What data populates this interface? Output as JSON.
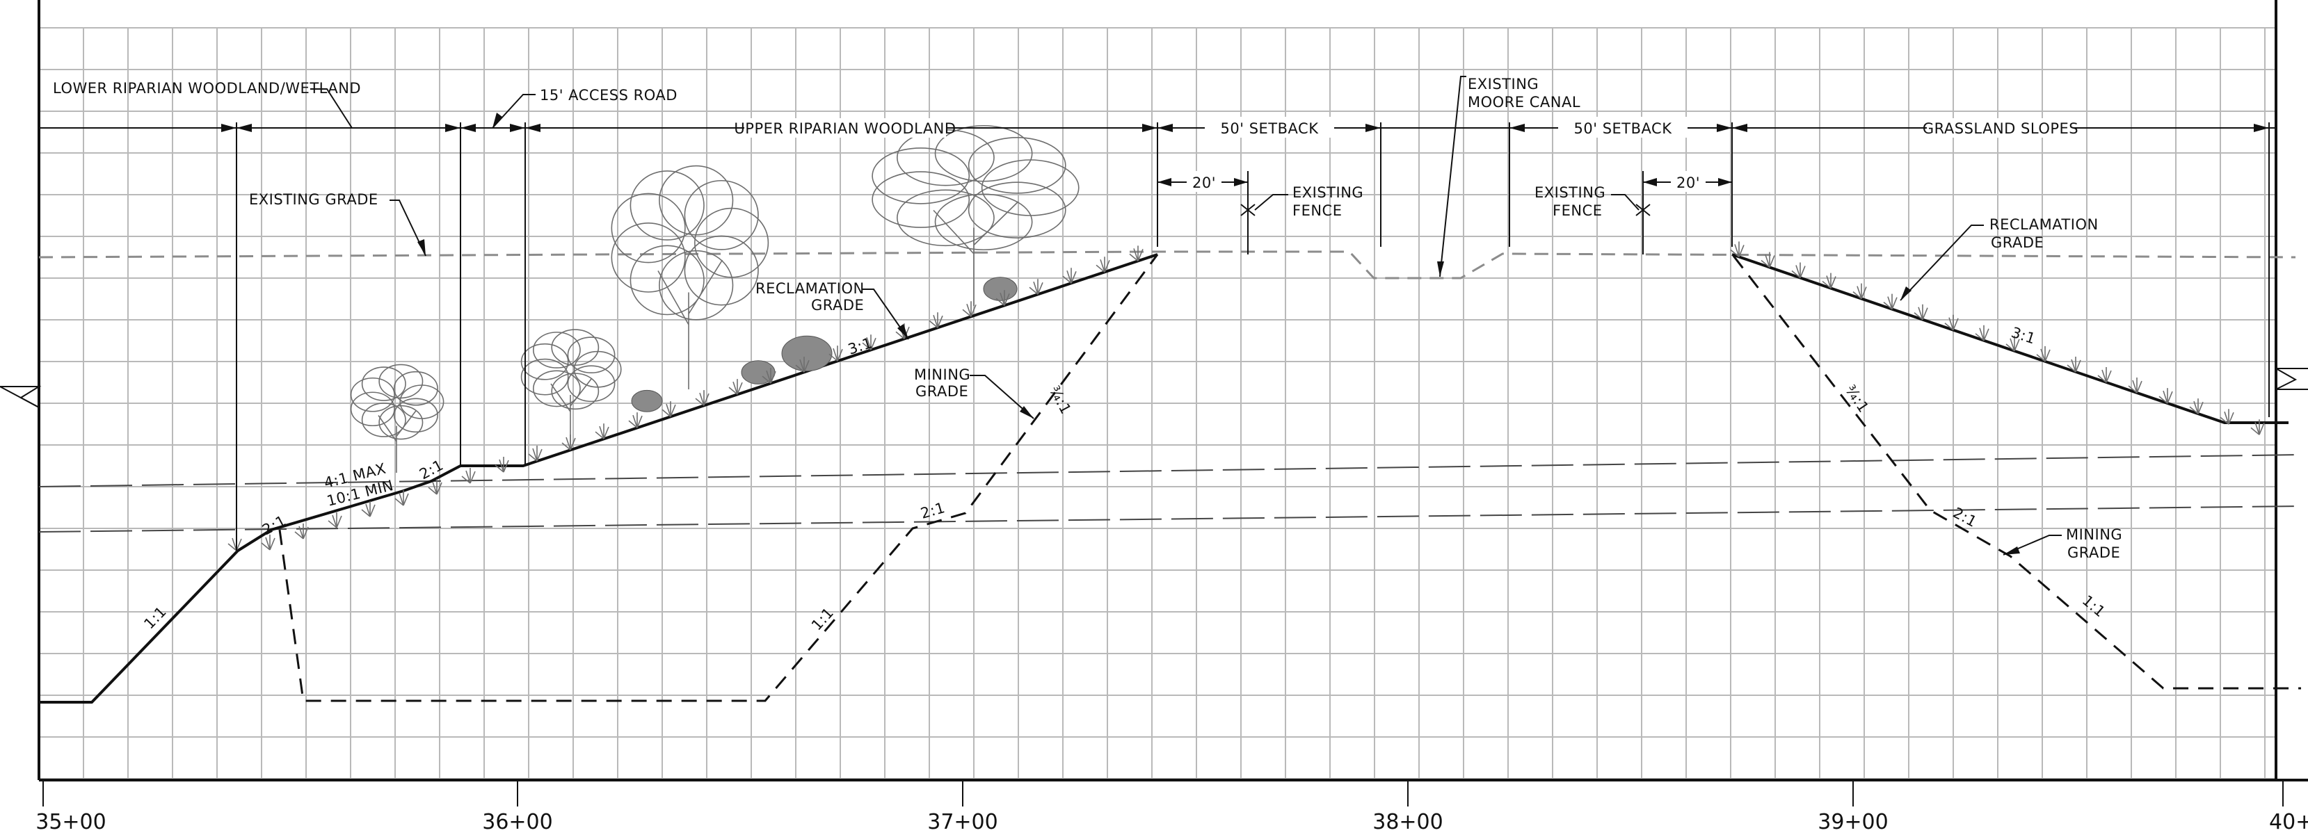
{
  "stations": [
    "35+00",
    "36+00",
    "37+00",
    "38+00",
    "39+00",
    "40+"
  ],
  "zones": {
    "lower_riparian": "LOWER RIPARIAN WOODLAND/WETLAND",
    "access_road": "15' ACCESS ROAD",
    "upper_riparian": "UPPER RIPARIAN WOODLAND",
    "setback_left": "50' SETBACK",
    "setback_right": "50' SETBACK",
    "grassland": "GRASSLAND SLOPES"
  },
  "annotations": {
    "existing_grade": "EXISTING GRADE",
    "reclamation_grade_left": [
      "RECLAMATION",
      "GRADE"
    ],
    "mining_grade_left": [
      "MINING",
      "GRADE"
    ],
    "existing_fence_left": [
      "EXISTING",
      "FENCE"
    ],
    "existing_fence_right": [
      "EXISTING",
      "FENCE"
    ],
    "canal": [
      "EXISTING",
      "MOORE CANAL"
    ],
    "reclamation_grade_right": [
      "RECLAMATION",
      "GRADE"
    ],
    "mining_grade_right": [
      "MINING",
      "GRADE"
    ],
    "dim_20_left": "20'",
    "dim_20_right": "20'",
    "slope_4_1_max": "4:1 MAX",
    "slope_10_1_min": "10:1 MIN"
  },
  "slopes": {
    "left_1_1": "1:1",
    "left_2_1_a": "2:1",
    "left_2_1_b": "2:1",
    "left_3_1": "3:1",
    "mining_3_4_1": "¾:1",
    "mining_2_1": "2:1",
    "mining_1_1": "1:1",
    "right_3_1": "3:1",
    "right_3_4_1": "¾:1",
    "right_2_1": "2:1",
    "right_1_1": "1:1"
  },
  "colors": {
    "line": "#111111",
    "grid": "#b9b9b9",
    "existing": "#8c8c8c"
  }
}
